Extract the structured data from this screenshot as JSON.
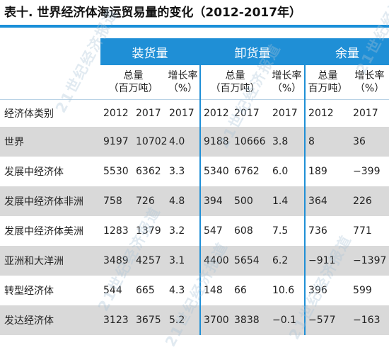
{
  "title": "表十. 世界经济体海运贸易量的变化（2012-2017年）",
  "watermark": "21世纪经济报道",
  "colors": {
    "header_blue": "#1f8fd6",
    "rule_blue": "#1a8fd8",
    "row_shade": "#d9d9d9"
  },
  "table": {
    "row_header": "经济体类别",
    "groups": [
      {
        "label": "装货量",
        "sub": [
          "总量（百万吨）",
          "增长率（%）"
        ],
        "years": [
          "2012",
          "2017",
          "2017"
        ]
      },
      {
        "label": "卸货量",
        "sub": [
          "总量（百万吨）",
          "增长率（%）"
        ],
        "years": [
          "2012",
          "2017",
          "2017"
        ]
      },
      {
        "label": "余量",
        "sub": [
          "总量（百万吨）",
          "增长率（%）"
        ],
        "years": [
          "2012",
          "2017"
        ]
      }
    ],
    "sub_lines": {
      "total_1": "总量",
      "total_2": "（百万吨）",
      "growth_1": "增长率",
      "growth_2": "（%）",
      "balance_total_2": "百万吨）",
      "balance_growth_2": "（%）"
    },
    "rows": [
      {
        "name": "世界",
        "v": [
          "9197",
          "10702",
          "4.0",
          "9188",
          "10666",
          "3.8",
          "8",
          "36"
        ]
      },
      {
        "name": "发展中经济体",
        "v": [
          "5530",
          "6362",
          "3.3",
          "5340",
          "6762",
          "6.0",
          "189",
          "−399"
        ]
      },
      {
        "name": "发展中经济体非洲",
        "v": [
          "758",
          "726",
          "4.8",
          "394",
          "500",
          "1.4",
          "364",
          "226"
        ]
      },
      {
        "name": "发展中经济体美洲",
        "v": [
          "1283",
          "1379",
          "3.2",
          "547",
          "608",
          "7.5",
          "736",
          "771"
        ]
      },
      {
        "name": "亚洲和大洋洲",
        "v": [
          "3489",
          "4257",
          "3.1",
          "4400",
          "5654",
          "6.2",
          "−911",
          "−1397"
        ]
      },
      {
        "name": "转型经济体",
        "v": [
          "544",
          "665",
          "4.3",
          "148",
          "66",
          "10.6",
          "396",
          "599"
        ]
      },
      {
        "name": "发达经济体",
        "v": [
          "3123",
          "3675",
          "5.2",
          "3700",
          "3838",
          "−0.1",
          "−577",
          "−163"
        ]
      }
    ]
  }
}
